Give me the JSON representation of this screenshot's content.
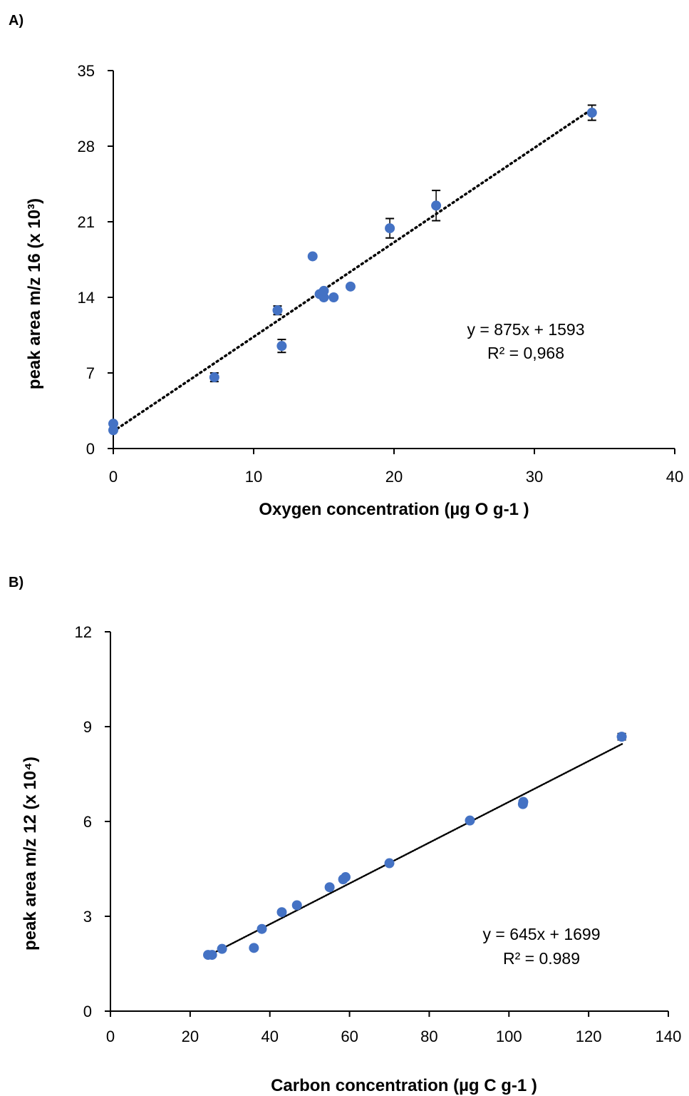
{
  "chart_data": [
    {
      "panel": "A)",
      "type": "scatter",
      "xlabel": "Oxygen concentration (µg O g-1 )",
      "ylabel": "peak area m/z 16 (x 10³)",
      "xlim": [
        0,
        40
      ],
      "ylim": [
        0,
        35
      ],
      "xticks": [
        0,
        10,
        20,
        30,
        40
      ],
      "yticks": [
        0,
        7,
        14,
        21,
        28,
        35
      ],
      "grid": false,
      "marker_color": "#4472C4",
      "trendline": {
        "style": "dotted",
        "slope": 0.875,
        "intercept": 1.593,
        "x_from": 0,
        "x_to": 34.1
      },
      "equation": "y = 875x + 1593",
      "r2": "R² = 0,968",
      "points": [
        {
          "x": 0,
          "y": 2.3,
          "err": 0
        },
        {
          "x": 0,
          "y": 1.7,
          "err": 0
        },
        {
          "x": 7.2,
          "y": 6.6,
          "err": 0.4
        },
        {
          "x": 11.7,
          "y": 12.8,
          "err": 0.4
        },
        {
          "x": 12.0,
          "y": 9.5,
          "err": 0.6
        },
        {
          "x": 14.2,
          "y": 17.8,
          "err": 0
        },
        {
          "x": 14.7,
          "y": 14.3,
          "err": 0
        },
        {
          "x": 15.0,
          "y": 14.0,
          "err": 0
        },
        {
          "x": 15.0,
          "y": 14.6,
          "err": 0
        },
        {
          "x": 15.7,
          "y": 14.0,
          "err": 0
        },
        {
          "x": 16.9,
          "y": 15.0,
          "err": 0
        },
        {
          "x": 19.7,
          "y": 20.4,
          "err": 0.9
        },
        {
          "x": 23.0,
          "y": 22.5,
          "err": 1.4
        },
        {
          "x": 34.1,
          "y": 31.1,
          "err": 0.7
        }
      ]
    },
    {
      "panel": "B)",
      "type": "scatter",
      "xlabel": "Carbon concentration (µg C g-1 )",
      "ylabel": "peak area m/z 12 (x 10⁴)",
      "xlim": [
        0,
        140
      ],
      "ylim": [
        0,
        12
      ],
      "xticks": [
        0,
        20,
        40,
        60,
        80,
        100,
        120,
        140
      ],
      "yticks": [
        0,
        3,
        6,
        9,
        12
      ],
      "grid": false,
      "marker_color": "#4472C4",
      "trendline": {
        "style": "dotted",
        "slope": 0.0645,
        "intercept": 0.1699,
        "x_from": 24.5,
        "x_to": 128.5
      },
      "equation": "y = 645x + 1699",
      "r2": "R² = 0.989",
      "points": [
        {
          "x": 24.5,
          "y": 1.78,
          "err": 0
        },
        {
          "x": 25.5,
          "y": 1.78,
          "err": 0
        },
        {
          "x": 28.0,
          "y": 1.97,
          "err": 0
        },
        {
          "x": 36.0,
          "y": 2.0,
          "err": 0
        },
        {
          "x": 38.0,
          "y": 2.6,
          "err": 0
        },
        {
          "x": 43.0,
          "y": 3.13,
          "err": 0
        },
        {
          "x": 46.8,
          "y": 3.35,
          "err": 0
        },
        {
          "x": 55.0,
          "y": 3.92,
          "err": 0
        },
        {
          "x": 58.4,
          "y": 4.17,
          "err": 0
        },
        {
          "x": 59.0,
          "y": 4.24,
          "err": 0
        },
        {
          "x": 70.0,
          "y": 4.68,
          "err": 0
        },
        {
          "x": 90.2,
          "y": 6.03,
          "err": 0
        },
        {
          "x": 103.5,
          "y": 6.55,
          "err": 0
        },
        {
          "x": 103.6,
          "y": 6.62,
          "err": 0
        },
        {
          "x": 128.3,
          "y": 8.68,
          "err": 0.1
        }
      ]
    }
  ]
}
